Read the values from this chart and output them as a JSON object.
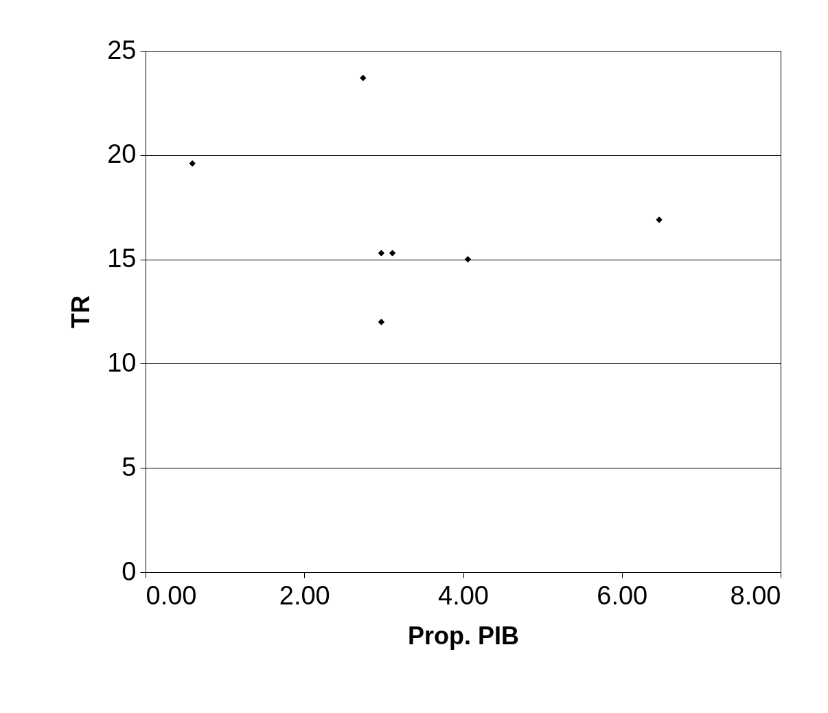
{
  "chart_data": {
    "type": "scatter",
    "xlabel": "Prop. PIB",
    "ylabel": "TR",
    "x": [
      0.59,
      2.74,
      2.97,
      3.11,
      2.97,
      4.06,
      6.47
    ],
    "series": [
      {
        "color": "#000000",
        "values": [
          19.6,
          23.7,
          15.3,
          15.3,
          12.0,
          15.0,
          16.9
        ]
      }
    ],
    "xlim": [
      0,
      8
    ],
    "xticks": [
      {
        "value": 0,
        "label": "0.00"
      },
      {
        "value": 2,
        "label": "2.00"
      },
      {
        "value": 4,
        "label": "4.00"
      },
      {
        "value": 6,
        "label": "6.00"
      },
      {
        "value": 8,
        "label": "8.00"
      }
    ],
    "ylim": [
      0,
      25
    ],
    "yticks": [
      0,
      5,
      10,
      15,
      20,
      25
    ],
    "grid": "y",
    "marker": "diamond"
  }
}
